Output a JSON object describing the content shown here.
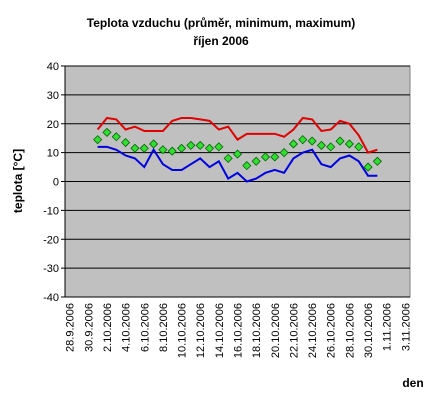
{
  "chart_data": {
    "type": "line",
    "title": "Teplota vzduchu (průměr, minimum, maximum)",
    "subtitle": "říjen 2006",
    "y_label": "teplota [°C]",
    "x_label": "den",
    "categories": [
      "28.9.2006",
      null,
      "30.9.2006",
      null,
      "2.10.2006",
      null,
      "4.10.2006",
      null,
      "6.10.2006",
      null,
      "8.10.2006",
      null,
      "10.10.2006",
      null,
      "12.10.2006",
      null,
      "14.10.2006",
      null,
      "16.10.2006",
      null,
      "18.10.2006",
      null,
      "20.10.2006",
      null,
      "22.10.2006",
      null,
      "24.10.2006",
      null,
      "26.10.2006",
      null,
      "28.10.2006",
      null,
      "30.10.2006",
      null,
      "1.11.2006",
      null,
      "3.11.2006"
    ],
    "series": [
      {
        "color": "#e00000",
        "style": "line",
        "values": [
          null,
          null,
          null,
          18,
          22,
          21.5,
          18,
          19,
          17.5,
          17.5,
          17.5,
          21,
          22,
          22,
          21.5,
          21,
          18,
          19,
          14.5,
          16.5,
          16.5,
          16.5,
          16.5,
          15.5,
          18,
          22,
          21.5,
          17.5,
          18,
          21,
          20,
          16,
          10,
          11,
          null,
          null,
          null
        ]
      },
      {
        "color": "#0000e0",
        "style": "line",
        "values": [
          null,
          null,
          null,
          12,
          12,
          11,
          9,
          8,
          5,
          11,
          6,
          4,
          4,
          6,
          8,
          5,
          7,
          1,
          3,
          0,
          1,
          3,
          4,
          3,
          8,
          10,
          11,
          6,
          5,
          8,
          9,
          7,
          2,
          2,
          null,
          null,
          null
        ]
      },
      {
        "color": "#33dd33",
        "style": "diamond",
        "values": [
          null,
          null,
          null,
          14.5,
          17,
          15.5,
          13.5,
          11.5,
          11.5,
          13,
          11,
          10.5,
          11.5,
          12.5,
          12.5,
          11.5,
          12,
          8,
          9.5,
          5.5,
          7,
          8.5,
          8.5,
          10,
          13,
          14.5,
          14,
          12.5,
          12,
          14,
          13,
          12,
          5,
          7,
          null,
          null,
          null
        ]
      }
    ],
    "ylim": [
      -40,
      40
    ],
    "yticks": [
      -40,
      -30,
      -20,
      -10,
      0,
      10,
      20,
      30,
      40
    ],
    "grid": true,
    "plot_background": "#c0c0c0"
  }
}
